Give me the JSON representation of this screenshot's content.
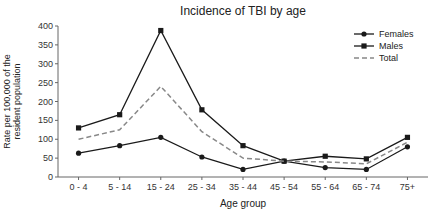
{
  "chart_data": {
    "type": "line",
    "title": "Incidence of TBI by age",
    "xlabel": "Age group",
    "ylabel": "Rate per 100,000 of the\nresident population",
    "categories": [
      "0 - 4",
      "5 - 14",
      "15 - 24",
      "25 - 34",
      "35 - 44",
      "45 - 54",
      "55 - 64",
      "65 - 74",
      "75+"
    ],
    "series": [
      {
        "name": "Females",
        "color": "#1a1a1a",
        "marker": "circle",
        "line_style": "solid",
        "values": [
          63,
          83,
          105,
          53,
          20,
          42,
          25,
          20,
          80
        ]
      },
      {
        "name": "Males",
        "color": "#1a1a1a",
        "marker": "square",
        "line_style": "solid",
        "values": [
          130,
          165,
          388,
          178,
          83,
          42,
          55,
          48,
          105
        ]
      },
      {
        "name": "Total",
        "color": "#888888",
        "marker": "none",
        "line_style": "dashed",
        "values": [
          100,
          125,
          240,
          120,
          50,
          42,
          40,
          35,
          92
        ]
      }
    ],
    "ylim": [
      0,
      400
    ],
    "yticks": [
      0,
      50,
      100,
      150,
      200,
      250,
      300,
      350,
      400
    ],
    "grid": false,
    "legend": "upper right"
  }
}
